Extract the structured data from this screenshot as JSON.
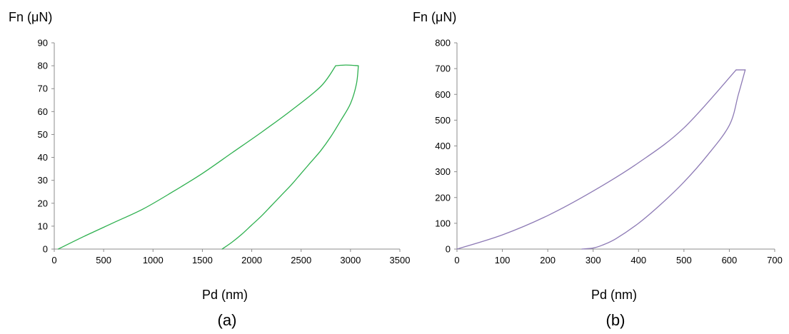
{
  "chart_data": [
    {
      "type": "line",
      "panel_label": "(a)",
      "xlabel": "Pd (nm)",
      "ylabel": "Fn (μN)",
      "xlim": [
        0,
        3500
      ],
      "ylim": [
        0,
        90
      ],
      "x_ticks": [
        0,
        500,
        1000,
        1500,
        2000,
        2500,
        3000,
        3500
      ],
      "y_ticks": [
        0,
        10,
        20,
        30,
        40,
        50,
        60,
        70,
        80,
        90
      ],
      "grid": false,
      "legend": "none",
      "series_color": "#2eb04f",
      "series": [
        {
          "segment": "loading",
          "x": [
            40,
            300,
            600,
            900,
            1200,
            1500,
            1800,
            2100,
            2400,
            2700,
            2850
          ],
          "y": [
            0,
            5.5,
            11.5,
            17.5,
            25,
            33,
            42,
            51,
            60.5,
            71,
            80
          ]
        },
        {
          "segment": "hold",
          "x": [
            2850,
            2950,
            3050,
            3080
          ],
          "y": [
            80,
            80.3,
            80.1,
            80
          ]
        },
        {
          "segment": "unloading",
          "x": [
            3080,
            3060,
            3000,
            2900,
            2800,
            2700,
            2600,
            2500,
            2400,
            2300,
            2200,
            2100,
            2000,
            1900,
            1800,
            1700
          ],
          "y": [
            80,
            72,
            63.5,
            56,
            49,
            43,
            38,
            33,
            28,
            23.5,
            19,
            14.5,
            10.5,
            6.5,
            3,
            0
          ]
        }
      ]
    },
    {
      "type": "line",
      "panel_label": "(b)",
      "xlabel": "Pd (nm)",
      "ylabel": "Fn (μN)",
      "xlim": [
        0,
        700
      ],
      "ylim": [
        0,
        800
      ],
      "x_ticks": [
        0,
        100,
        200,
        300,
        400,
        500,
        600,
        700
      ],
      "y_ticks": [
        0,
        100,
        200,
        300,
        400,
        500,
        600,
        700,
        800
      ],
      "grid": false,
      "legend": "none",
      "series_color": "#8d7ab5",
      "series": [
        {
          "segment": "loading",
          "x": [
            0,
            100,
            200,
            300,
            400,
            500,
            615
          ],
          "y": [
            0,
            55,
            130,
            225,
            335,
            470,
            695
          ]
        },
        {
          "segment": "hold",
          "x": [
            615,
            635
          ],
          "y": [
            695,
            695
          ]
        },
        {
          "segment": "unloading",
          "x": [
            635,
            620,
            600,
            550,
            500,
            450,
            400,
            350,
            320,
            300,
            275
          ],
          "y": [
            695,
            600,
            480,
            360,
            260,
            175,
            100,
            40,
            15,
            4,
            0
          ]
        }
      ]
    }
  ]
}
